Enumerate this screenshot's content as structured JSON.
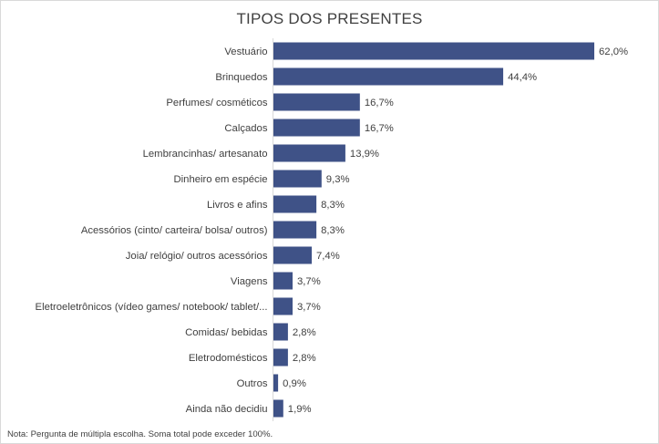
{
  "colors": {
    "bar": "#3f5287",
    "text": "#404040",
    "axis": "#d9d9d9"
  },
  "note": "Nota: Pergunta de múltipla escolha. Soma total pode exceder 100%.",
  "chart_data": {
    "type": "bar",
    "orientation": "horizontal",
    "title": "TIPOS DOS PRESENTES",
    "xlabel": "",
    "ylabel": "",
    "xlim": [
      0,
      62
    ],
    "grid": false,
    "legend": "none",
    "categories": [
      "Vestuário",
      "Brinquedos",
      "Perfumes/ cosméticos",
      "Calçados",
      "Lembrancinhas/ artesanato",
      "Dinheiro em espécie",
      "Livros e afins",
      "Acessórios (cinto/ carteira/ bolsa/ outros)",
      "Joia/ relógio/ outros acessórios",
      "Viagens",
      "Eletroeletrônicos (vídeo games/ notebook/ tablet/...",
      "Comidas/ bebidas",
      "Eletrodomésticos",
      "Outros",
      "Ainda não decidiu"
    ],
    "values": [
      62.0,
      44.4,
      16.7,
      16.7,
      13.9,
      9.3,
      8.3,
      8.3,
      7.4,
      3.7,
      3.7,
      2.8,
      2.8,
      0.9,
      1.9
    ],
    "value_labels": [
      "62,0%",
      "44,4%",
      "16,7%",
      "16,7%",
      "13,9%",
      "9,3%",
      "8,3%",
      "8,3%",
      "7,4%",
      "3,7%",
      "3,7%",
      "2,8%",
      "2,8%",
      "0,9%",
      "1,9%"
    ]
  }
}
